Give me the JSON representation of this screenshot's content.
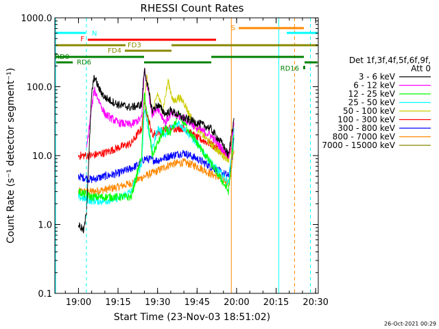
{
  "chart_data": {
    "type": "line",
    "title": "RHESSI Count Rates",
    "xlabel": "Start Time (23-Nov-03 18:51:02)",
    "ylabel": "Count Rate (s⁻¹ detector segment⁻¹)",
    "yscale": "log",
    "ylim": [
      0.1,
      1000
    ],
    "xlim": [
      "18:51:02",
      "20:31:00"
    ],
    "x_ticks": [
      "19:00",
      "19:15",
      "19:30",
      "19:45",
      "20:00",
      "20:15",
      "20:30"
    ],
    "y_ticks": [
      "0.1",
      "1.0",
      "10.0",
      "100.0",
      "1000.0"
    ],
    "timestamp": "26-Oct-2021 00:29",
    "legend": {
      "position": "right",
      "header_1": "Det 1f,3f,4f,5f,6f,9f,",
      "header_2": "Att 0"
    },
    "series": [
      {
        "name": "3 - 6 keV",
        "color": "#000000",
        "x": [
          "19:00",
          "19:02",
          "19:03",
          "19:05",
          "19:06",
          "19:08",
          "19:10",
          "19:15",
          "19:20",
          "19:24",
          "19:25",
          "19:28",
          "19:30",
          "19:33",
          "19:35",
          "19:40",
          "19:45",
          "19:50",
          "19:55",
          "19:57",
          "19:58",
          "19:59"
        ],
        "y": [
          1.0,
          0.8,
          1.5,
          80,
          140,
          90,
          70,
          55,
          50,
          55,
          180,
          45,
          55,
          40,
          45,
          35,
          30,
          25,
          14,
          10,
          20,
          35
        ]
      },
      {
        "name": "6 - 12 keV",
        "color": "#ff00ff",
        "x": [
          "19:03",
          "19:05",
          "19:06",
          "19:08",
          "19:10",
          "19:15",
          "19:20",
          "19:24",
          "19:25",
          "19:28",
          "19:30",
          "19:33",
          "19:35",
          "19:40",
          "19:45",
          "19:50",
          "19:55",
          "19:57",
          "19:58",
          "19:59"
        ],
        "y": [
          12,
          50,
          90,
          60,
          40,
          30,
          28,
          35,
          180,
          40,
          50,
          30,
          40,
          35,
          25,
          20,
          12,
          10,
          15,
          30
        ]
      },
      {
        "name": "12 - 25 keV",
        "color": "#00ff00",
        "x": [
          "19:00",
          "19:05",
          "19:10",
          "19:15",
          "19:20",
          "19:24",
          "19:25",
          "19:28",
          "19:30",
          "19:33",
          "19:35",
          "19:38",
          "19:40",
          "19:45",
          "19:50",
          "19:55",
          "19:57",
          "19:58",
          "19:59"
        ],
        "y": [
          3,
          2.5,
          2.5,
          2.5,
          2.5,
          10,
          80,
          10,
          15,
          25,
          20,
          40,
          30,
          15,
          8,
          4,
          3,
          8,
          20
        ]
      },
      {
        "name": "25 - 50 keV",
        "color": "#00ffff",
        "x": [
          "19:00",
          "19:05",
          "19:10",
          "19:15",
          "19:20",
          "19:24",
          "19:25",
          "19:28",
          "19:30",
          "19:33",
          "19:35",
          "19:38",
          "19:40",
          "19:45",
          "19:50",
          "19:55",
          "19:57",
          "19:58",
          "19:59"
        ],
        "y": [
          2.5,
          2.2,
          2.2,
          2.4,
          3,
          8,
          50,
          12,
          25,
          20,
          25,
          30,
          25,
          15,
          8,
          5,
          4,
          10,
          25
        ]
      },
      {
        "name": "50 - 100 keV",
        "color": "#cccc00",
        "x": [
          "19:25",
          "19:26",
          "19:28",
          "19:30",
          "19:32",
          "19:34",
          "19:36",
          "19:38",
          "19:40",
          "19:42",
          "19:45",
          "19:50",
          "19:55",
          "19:57",
          "19:58",
          "19:59"
        ],
        "y": [
          60,
          150,
          40,
          80,
          45,
          120,
          60,
          70,
          60,
          40,
          25,
          15,
          10,
          9,
          15,
          30
        ]
      },
      {
        "name": "100 - 300 keV",
        "color": "#ff0000",
        "x": [
          "19:00",
          "19:05",
          "19:10",
          "19:15",
          "19:20",
          "19:24",
          "19:25",
          "19:28",
          "19:30",
          "19:35",
          "19:40",
          "19:45",
          "19:50",
          "19:55",
          "19:57",
          "19:58",
          "19:59"
        ],
        "y": [
          10,
          10,
          11,
          13,
          15,
          25,
          60,
          20,
          22,
          25,
          25,
          18,
          15,
          11,
          9,
          15,
          32
        ]
      },
      {
        "name": "300 - 800 keV",
        "color": "#0000ff",
        "x": [
          "19:00",
          "19:05",
          "19:10",
          "19:15",
          "19:20",
          "19:23",
          "19:25",
          "19:30",
          "19:35",
          "19:40",
          "19:45",
          "19:50",
          "19:55",
          "19:57",
          "19:58",
          "19:59"
        ],
        "y": [
          5,
          4.5,
          5,
          5.5,
          6.5,
          7.5,
          9,
          8.5,
          10,
          11,
          9,
          7,
          5.5,
          5,
          8,
          18
        ]
      },
      {
        "name": "800 - 7000 keV",
        "color": "#ff8800",
        "x": [
          "19:00",
          "19:05",
          "19:10",
          "19:15",
          "19:20",
          "19:25",
          "19:30",
          "19:35",
          "19:40",
          "19:45",
          "19:50",
          "19:55",
          "19:57",
          "19:58",
          "19:59"
        ],
        "y": [
          3,
          3,
          3.2,
          3.5,
          4,
          5,
          6,
          7.5,
          8,
          7,
          5.5,
          4.5,
          4,
          6,
          12
        ]
      },
      {
        "name": "7000 - 15000 keV",
        "color": "#888800",
        "x": [],
        "y": []
      }
    ],
    "annotations": [
      {
        "label": "N",
        "color": "#00ffff",
        "style": "dashed-line",
        "x": "19:03"
      },
      {
        "label": "F",
        "color": "#ff0000",
        "style": "bar"
      },
      {
        "label": "FD3",
        "color": "#888800",
        "style": "bar"
      },
      {
        "label": "FD4",
        "color": "#888800",
        "style": "bar"
      },
      {
        "label": "RD0",
        "color": "#008000",
        "style": "bar"
      },
      {
        "label": "RD6",
        "color": "#008000",
        "style": "bar"
      },
      {
        "label": "RD16",
        "color": "#008000",
        "style": "bar"
      },
      {
        "label": "S",
        "color": "#ff8800",
        "style": "bar"
      }
    ],
    "vertical_lines": [
      {
        "x": "19:03",
        "color": "#00ffff",
        "style": "dashed"
      },
      {
        "x": "19:58",
        "color": "#ff8800",
        "style": "solid"
      },
      {
        "x": "20:16",
        "color": "#00ffff",
        "style": "solid"
      },
      {
        "x": "20:22",
        "color": "#ff8800",
        "style": "dashed"
      },
      {
        "x": "20:28",
        "color": "#00ffff",
        "style": "dashed"
      }
    ]
  }
}
